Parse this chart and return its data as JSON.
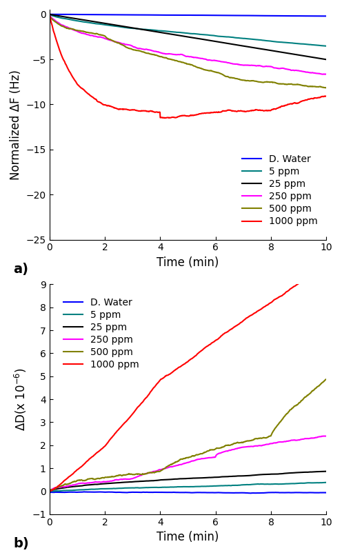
{
  "title_a": "a)",
  "title_b": "b)",
  "xlabel": "Time (min)",
  "ylabel_a": "Normalized ΔF (Hz)",
  "xlim": [
    0,
    10
  ],
  "ylim_a": [
    -25,
    0.5
  ],
  "ylim_b": [
    -1,
    9
  ],
  "yticks_a": [
    0,
    -5,
    -10,
    -15,
    -20,
    -25
  ],
  "yticks_b": [
    -1,
    0,
    1,
    2,
    3,
    4,
    5,
    6,
    7,
    8,
    9
  ],
  "xticks": [
    0,
    2,
    4,
    6,
    8,
    10
  ],
  "colors": {
    "D. Water": "#0000ff",
    "5 ppm": "#008080",
    "25 ppm": "#000000",
    "250 ppm": "#ff00ff",
    "500 ppm": "#808000",
    "1000 ppm": "#ff0000"
  },
  "legend_labels": [
    "D. Water",
    "5 ppm",
    "25 ppm",
    "250 ppm",
    "500 ppm",
    "1000 ppm"
  ],
  "noise_seed": 42,
  "n_points": 1000,
  "time_end": 10.0
}
